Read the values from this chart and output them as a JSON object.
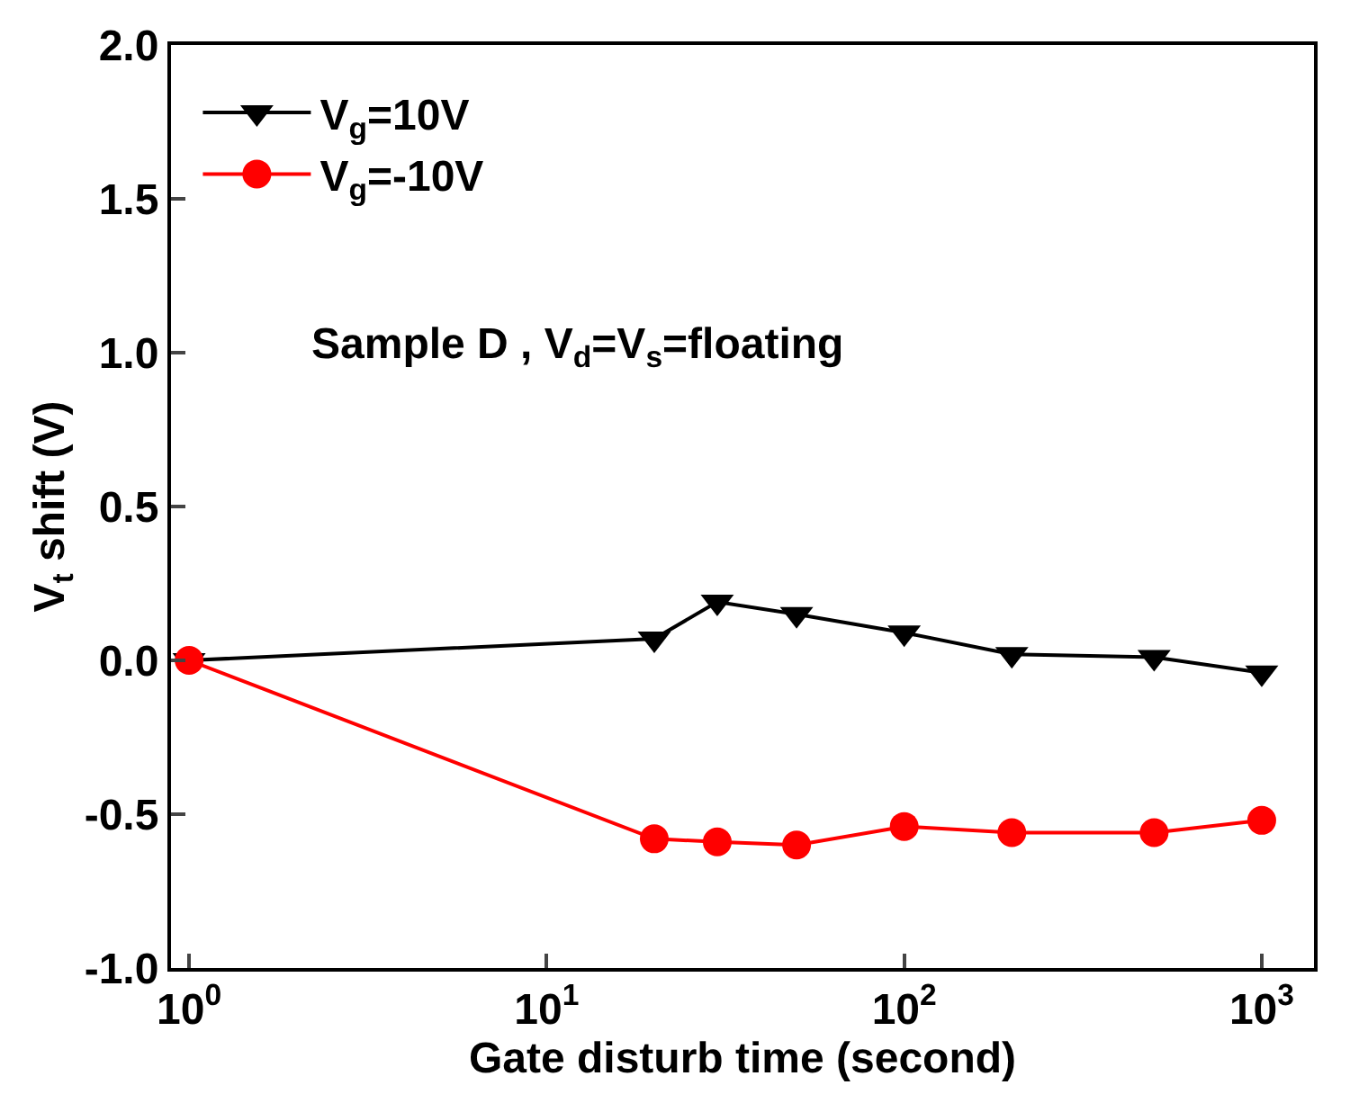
{
  "chart_data": {
    "type": "line",
    "xlabel": "Gate disturb time (second)",
    "ylabel": "V$_{t}$ shift (V)",
    "log": "x",
    "xlim": [
      0.89,
      1400
    ],
    "ylim": [
      -1.0,
      2.0
    ],
    "xticks": [
      {
        "value": 1,
        "label": "10$^{0}$"
      },
      {
        "value": 10,
        "label": "10$^{1}$"
      },
      {
        "value": 100,
        "label": "10$^{2}$"
      },
      {
        "value": 1000,
        "label": "10$^{3}$"
      }
    ],
    "yticks": [
      {
        "value": -1,
        "label": "-1.0"
      },
      {
        "value": -0.5,
        "label": "-0.5"
      },
      {
        "value": 0,
        "label": "0.0"
      },
      {
        "value": 0.5,
        "label": "0.5"
      },
      {
        "value": 1,
        "label": "1.0"
      },
      {
        "value": 1.5,
        "label": "1.5"
      },
      {
        "value": 2,
        "label": "2.0"
      }
    ],
    "x": [
      1,
      20,
      30,
      50,
      100,
      200,
      500,
      1000
    ],
    "series": [
      {
        "name": "V$_{g}$=10V",
        "color": "#000000",
        "marker": "triangle",
        "values": [
          0,
          0.07,
          0.19,
          0.15,
          0.09,
          0.02,
          0.01,
          -0.04
        ]
      },
      {
        "name": "V$_{g}$=-10V",
        "color": "#ff0000",
        "marker": "circle",
        "values": [
          0,
          -0.58,
          -0.59,
          -0.6,
          -0.54,
          -0.56,
          -0.56,
          -0.52
        ]
      }
    ],
    "annotations": [
      "Sample D , V$_{d}$=V$_{s}$=floating"
    ],
    "legend": "top left",
    "grid": false
  }
}
